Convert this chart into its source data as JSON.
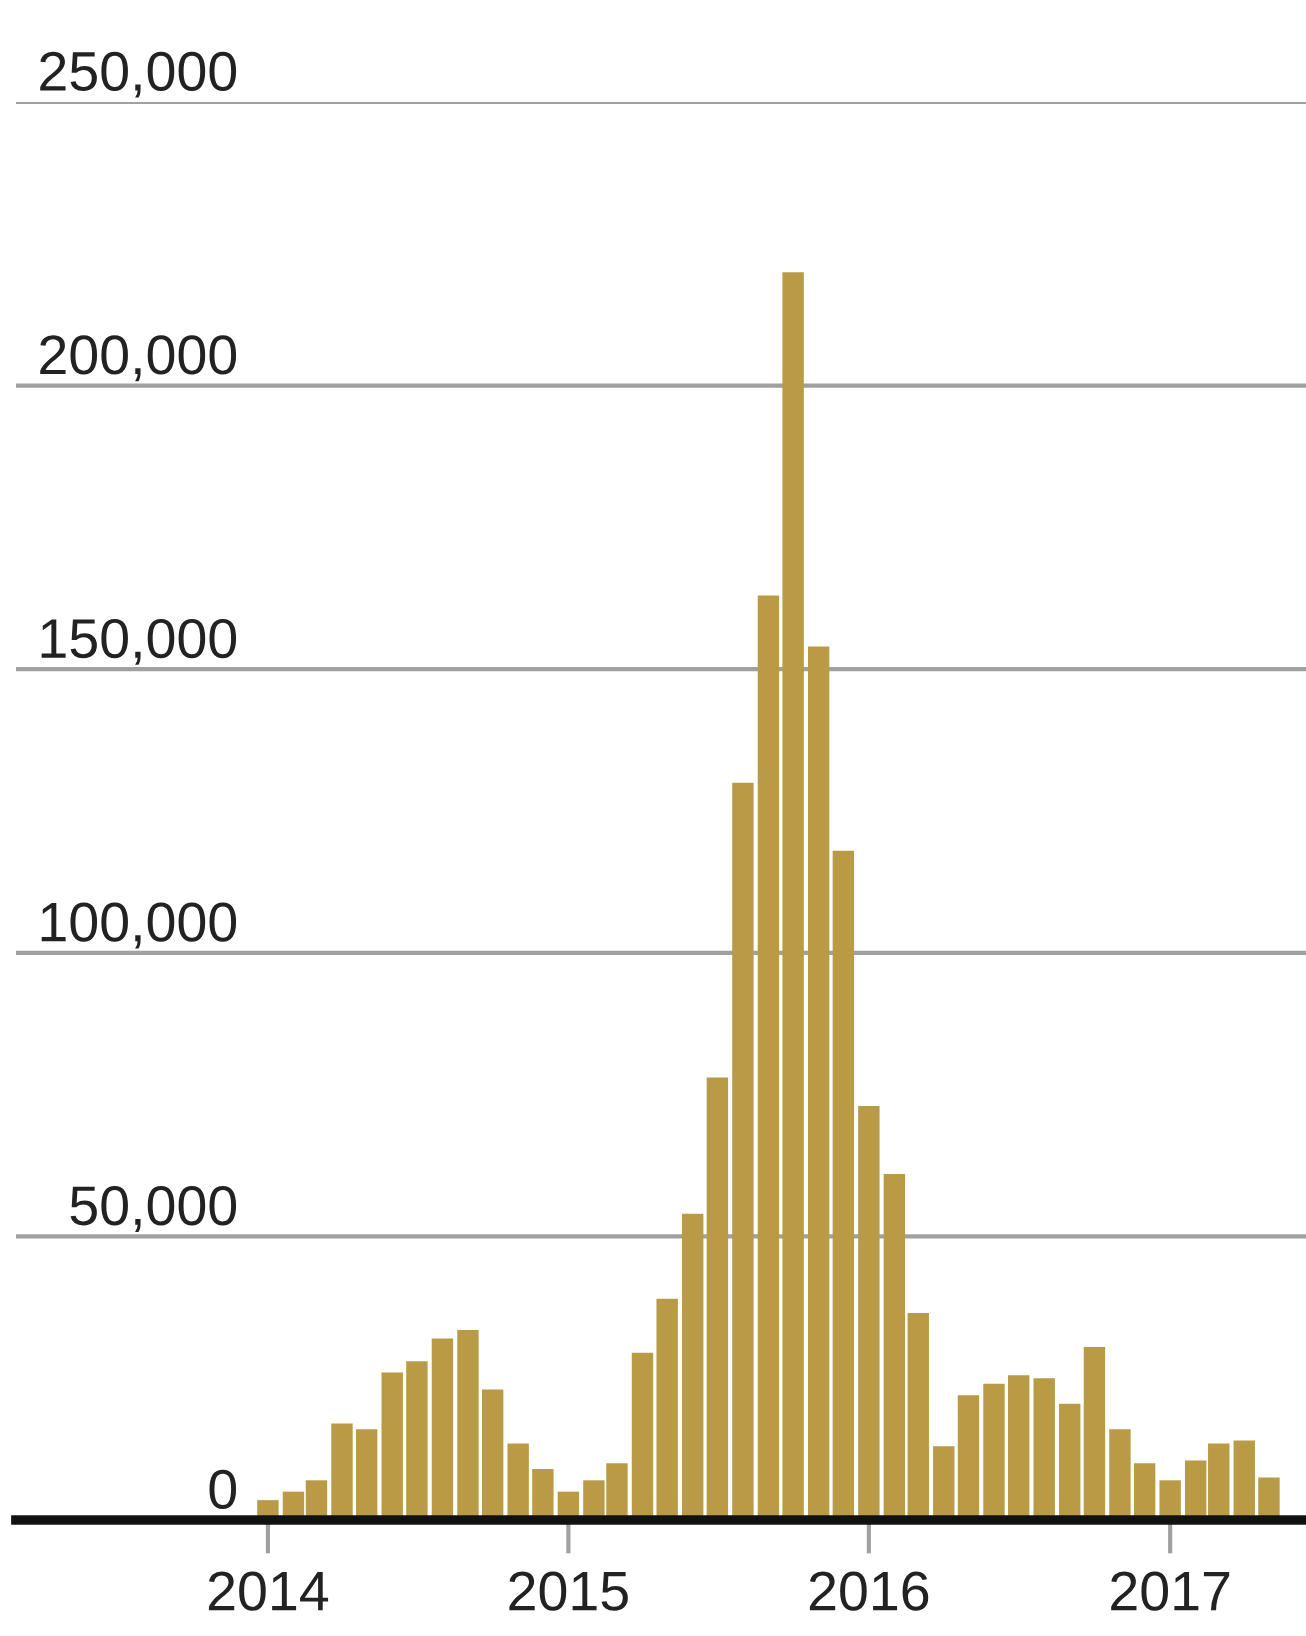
{
  "chart_data": {
    "type": "bar",
    "x": [
      "2014-01",
      "2014-02",
      "2014-03",
      "2014-04",
      "2014-05",
      "2014-06",
      "2014-07",
      "2014-08",
      "2014-09",
      "2014-10",
      "2014-11",
      "2014-12",
      "2015-01",
      "2015-02",
      "2015-03",
      "2015-04",
      "2015-05",
      "2015-06",
      "2015-07",
      "2015-08",
      "2015-09",
      "2015-10",
      "2015-11",
      "2015-12",
      "2016-01",
      "2016-02",
      "2016-03",
      "2016-04",
      "2016-05",
      "2016-06",
      "2016-07",
      "2016-08",
      "2016-09",
      "2016-10",
      "2016-11",
      "2016-12",
      "2017-01",
      "2017-02",
      "2017-03",
      "2017-04",
      "2017-05"
    ],
    "values": [
      3500,
      5000,
      7000,
      17000,
      16000,
      26000,
      28000,
      32000,
      33500,
      23000,
      13500,
      9000,
      5000,
      7000,
      10000,
      29500,
      39000,
      54000,
      78000,
      130000,
      163000,
      220000,
      154000,
      118000,
      73000,
      61000,
      36500,
      13000,
      22000,
      24000,
      25500,
      25000,
      20500,
      30500,
      16000,
      10000,
      7000,
      10500,
      13500,
      14000,
      7500
    ],
    "color": "#b99a45",
    "xlim": [
      "2013-03-01",
      "2017-06-15"
    ],
    "xticks": [
      {
        "value": "2014-01-01",
        "label": "2014"
      },
      {
        "value": "2015-01-01",
        "label": "2015"
      },
      {
        "value": "2016-01-01",
        "label": "2016"
      },
      {
        "value": "2017-01-01",
        "label": "2017"
      }
    ],
    "ylim": [
      0,
      250000
    ],
    "yticks": [
      {
        "value": 0,
        "label": "0"
      },
      {
        "value": 50000,
        "label": "50,000"
      },
      {
        "value": 100000,
        "label": "100,000"
      },
      {
        "value": 150000,
        "label": "150,000"
      },
      {
        "value": 200000,
        "label": "200,000"
      },
      {
        "value": 250000,
        "label": "250,000"
      }
    ],
    "grid": "y"
  }
}
